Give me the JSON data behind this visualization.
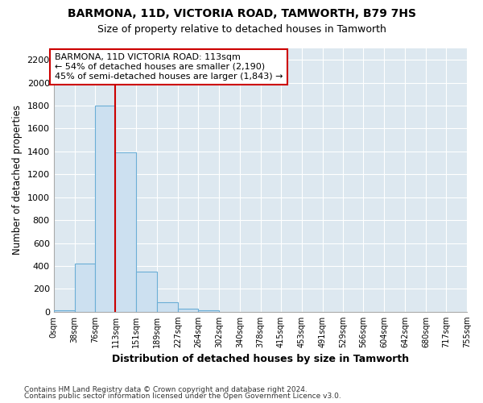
{
  "title1": "BARMONA, 11D, VICTORIA ROAD, TAMWORTH, B79 7HS",
  "title2": "Size of property relative to detached houses in Tamworth",
  "xlabel": "Distribution of detached houses by size in Tamworth",
  "ylabel": "Number of detached properties",
  "bin_edges": [
    0,
    38,
    76,
    113,
    151,
    189,
    227,
    264,
    302,
    340,
    378,
    415,
    453,
    491,
    529,
    566,
    604,
    642,
    680,
    717,
    755
  ],
  "bar_heights": [
    15,
    420,
    1800,
    1390,
    350,
    80,
    30,
    15,
    0,
    0,
    0,
    0,
    0,
    0,
    0,
    0,
    0,
    0,
    0,
    0
  ],
  "bar_color": "#cce0f0",
  "bar_edgecolor": "#6baed6",
  "vline_x": 113,
  "vline_color": "#cc0000",
  "annotation_line1": "BARMONA, 11D VICTORIA ROAD: 113sqm",
  "annotation_line2": "← 54% of detached houses are smaller (2,190)",
  "annotation_line3": "45% of semi-detached houses are larger (1,843) →",
  "annotation_box_edgecolor": "#cc0000",
  "annotation_box_facecolor": "#ffffff",
  "ylim": [
    0,
    2300
  ],
  "yticks": [
    0,
    200,
    400,
    600,
    800,
    1000,
    1200,
    1400,
    1600,
    1800,
    2000,
    2200
  ],
  "background_color": "#dde8f0",
  "grid_color": "#ffffff",
  "footer_line1": "Contains HM Land Registry data © Crown copyright and database right 2024.",
  "footer_line2": "Contains public sector information licensed under the Open Government Licence v3.0.",
  "tick_labels": [
    "0sqm",
    "38sqm",
    "76sqm",
    "113sqm",
    "151sqm",
    "189sqm",
    "227sqm",
    "264sqm",
    "302sqm",
    "340sqm",
    "378sqm",
    "415sqm",
    "453sqm",
    "491sqm",
    "529sqm",
    "566sqm",
    "604sqm",
    "642sqm",
    "680sqm",
    "717sqm",
    "755sqm"
  ]
}
